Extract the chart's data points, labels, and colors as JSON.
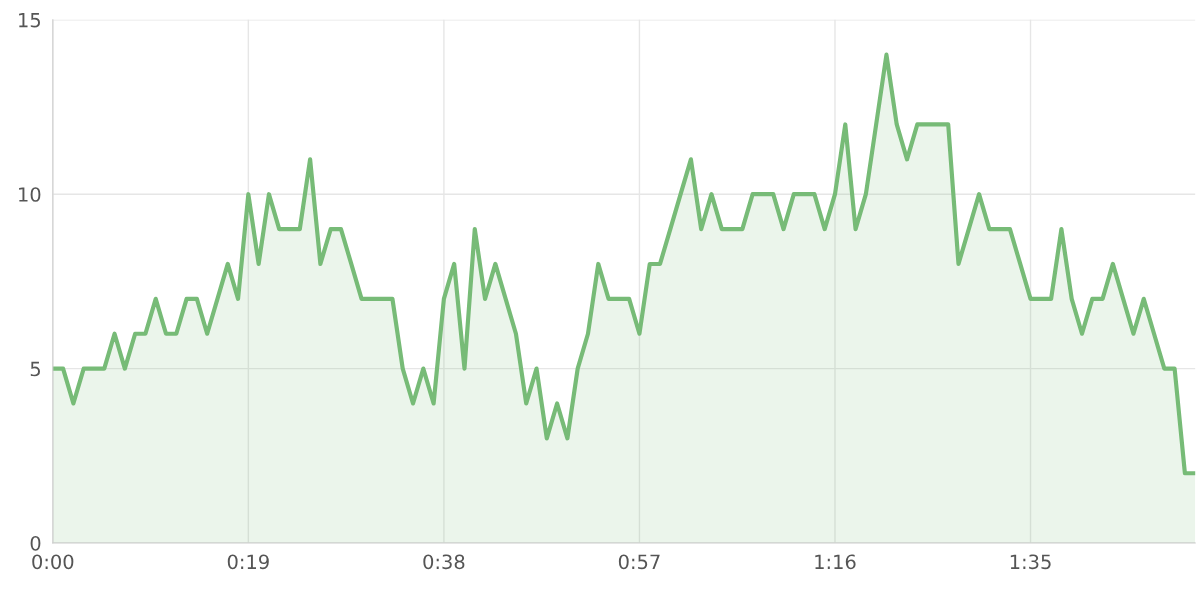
{
  "chart_data": {
    "type": "area",
    "x": [
      0,
      1,
      2,
      3,
      4,
      5,
      6,
      7,
      8,
      9,
      10,
      11,
      12,
      13,
      14,
      15,
      16,
      17,
      18,
      19,
      20,
      21,
      22,
      23,
      24,
      25,
      26,
      27,
      28,
      29,
      30,
      31,
      32,
      33,
      34,
      35,
      36,
      37,
      38,
      39,
      40,
      41,
      42,
      43,
      44,
      45,
      46,
      47,
      48,
      49,
      50,
      51,
      52,
      53,
      54,
      55,
      56,
      57,
      58,
      59,
      60,
      61,
      62,
      63,
      64,
      65,
      66,
      67,
      68,
      69,
      70,
      71,
      72,
      73,
      74,
      75,
      76,
      77,
      78,
      79,
      80,
      81,
      82,
      83,
      84,
      85,
      86,
      87,
      88,
      89,
      90,
      91,
      92,
      93,
      94,
      95,
      96,
      97,
      98,
      99,
      100,
      101,
      102,
      103,
      104,
      105,
      106,
      107,
      108,
      109,
      110,
      111
    ],
    "series": [
      {
        "color": "#77bb77",
        "values": [
          5,
          5,
          4,
          5,
          5,
          5,
          6,
          5,
          6,
          6,
          7,
          6,
          6,
          7,
          7,
          6,
          7,
          8,
          7,
          10,
          8,
          10,
          9,
          9,
          9,
          11,
          8,
          9,
          9,
          8,
          7,
          7,
          7,
          7,
          5,
          4,
          5,
          4,
          7,
          8,
          5,
          9,
          7,
          8,
          7,
          6,
          4,
          5,
          3,
          4,
          3,
          5,
          6,
          8,
          7,
          7,
          7,
          6,
          8,
          8,
          9,
          10,
          11,
          9,
          10,
          9,
          9,
          9,
          10,
          10,
          10,
          9,
          10,
          10,
          10,
          9,
          10,
          12,
          9,
          10,
          12,
          14,
          12,
          11,
          12,
          12,
          12,
          12,
          8,
          9,
          10,
          9,
          9,
          9,
          8,
          7,
          7,
          7,
          9,
          7,
          6,
          7,
          7,
          8,
          7,
          6,
          7,
          6,
          5,
          5,
          2,
          2
        ]
      }
    ],
    "xlim": [
      0,
      111
    ],
    "xticks": [
      {
        "value": 0,
        "label": "0:00"
      },
      {
        "value": 19,
        "label": "0:19"
      },
      {
        "value": 38,
        "label": "0:38"
      },
      {
        "value": 57,
        "label": "0:57"
      },
      {
        "value": 76,
        "label": "1:16"
      },
      {
        "value": 95,
        "label": "1:35"
      }
    ],
    "ylim": [
      0,
      15
    ],
    "yticks": [
      0,
      5,
      10,
      15
    ],
    "grid": true
  }
}
